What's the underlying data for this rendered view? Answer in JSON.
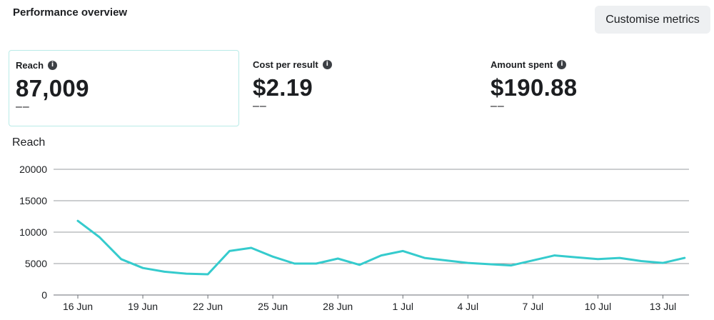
{
  "header": {
    "title": "Performance overview",
    "customise_label": "Customise metrics"
  },
  "metrics": [
    {
      "label": "Reach",
      "value": "87,009",
      "delta": "––",
      "info_icon": "info-icon",
      "selected": true
    },
    {
      "label": "Cost per result",
      "value": "$2.19",
      "delta": "––",
      "info_icon": "info-icon",
      "selected": false
    },
    {
      "label": "Amount spent",
      "value": "$190.88",
      "delta": "––",
      "info_icon": "info-icon",
      "selected": false
    }
  ],
  "colors": {
    "line": "#35cbcd",
    "selected_border": "#b9ebe7",
    "button_bg": "#eef0f2"
  },
  "chart_data": {
    "type": "line",
    "ylabel": "Reach",
    "ylim": [
      0,
      20000
    ],
    "yticks": [
      0,
      5000,
      10000,
      15000,
      20000
    ],
    "xtick_labels": [
      "16 Jun",
      "19 Jun",
      "22 Jun",
      "25 Jun",
      "28 Jun",
      "1 Jul",
      "4 Jul",
      "7 Jul",
      "10 Jul",
      "13 Jul"
    ],
    "x": [
      "16 Jun",
      "17 Jun",
      "18 Jun",
      "19 Jun",
      "20 Jun",
      "21 Jun",
      "22 Jun",
      "23 Jun",
      "24 Jun",
      "25 Jun",
      "26 Jun",
      "27 Jun",
      "28 Jun",
      "29 Jun",
      "30 Jun",
      "1 Jul",
      "2 Jul",
      "3 Jul",
      "4 Jul",
      "5 Jul",
      "6 Jul",
      "7 Jul",
      "8 Jul",
      "9 Jul",
      "10 Jul",
      "11 Jul",
      "12 Jul",
      "13 Jul",
      "14 Jul"
    ],
    "series": [
      {
        "values": [
          11800,
          9200,
          5700,
          4300,
          3700,
          3400,
          3300,
          7000,
          7500,
          6100,
          5000,
          5000,
          5800,
          4800,
          6300,
          7000,
          5900,
          5500,
          5100,
          4900,
          4700,
          5500,
          6300,
          6000,
          5700,
          5900,
          5400,
          5100,
          5900
        ]
      }
    ],
    "grid": true
  }
}
